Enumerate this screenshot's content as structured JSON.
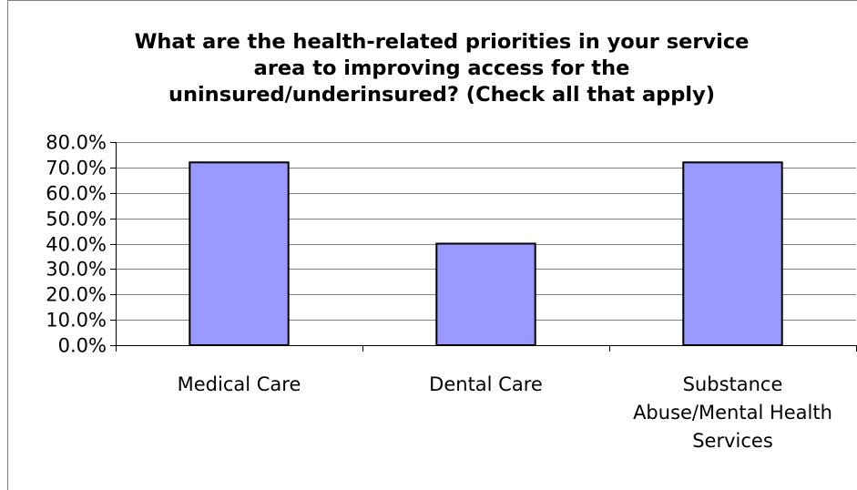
{
  "chart_data": {
    "type": "bar",
    "title_lines": [
      "What are the health-related priorities in your service",
      "area to improving access for the",
      "uninsured/underinsured? (Check all that apply)"
    ],
    "categories": [
      [
        "Medical Care"
      ],
      [
        "Dental Care"
      ],
      [
        "Substance",
        "Abuse/Mental Health",
        "Services"
      ]
    ],
    "values": [
      72.0,
      40.0,
      72.0
    ],
    "y_ticks": [
      "0.0%",
      "10.0%",
      "20.0%",
      "30.0%",
      "40.0%",
      "50.0%",
      "60.0%",
      "70.0%",
      "80.0%"
    ],
    "ylim": [
      0,
      80
    ],
    "grid": true,
    "legend": "none",
    "colors": {
      "bar_fill": "#9999FF",
      "bar_stroke": "#000000",
      "gridline": "#808080",
      "frame": "#808080"
    }
  }
}
